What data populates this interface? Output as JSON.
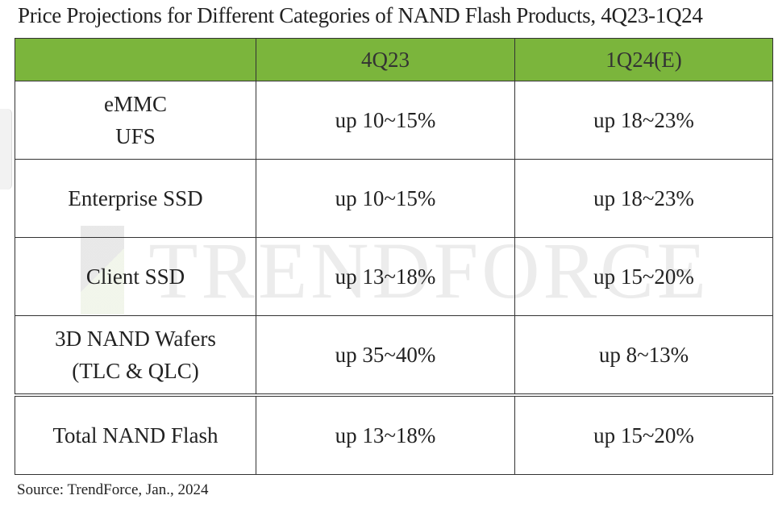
{
  "header": {
    "title": "Price Projections for Different Categories of NAND Flash Products, 4Q23-1Q24"
  },
  "table": {
    "columns": [
      "4Q23",
      "1Q24(E)"
    ],
    "rows": [
      [
        [
          "eMMC",
          "UFS"
        ],
        "up 10~15%",
        "up 18~23%"
      ],
      [
        [
          "Enterprise SSD"
        ],
        "up 10~15%",
        "up 18~23%"
      ],
      [
        [
          "Client SSD"
        ],
        "up 13~18%",
        "up 15~20%"
      ],
      [
        [
          "3D NAND Wafers",
          "(TLC & QLC)"
        ],
        "up 35~40%",
        "up 8~13%"
      ],
      [
        [
          "Total NAND Flash"
        ],
        "up 13~18%",
        "up 15~20%"
      ]
    ]
  },
  "watermark": "TRENDFORCE",
  "footer": {
    "source": "Source: TrendForce, Jan., 2024"
  }
}
